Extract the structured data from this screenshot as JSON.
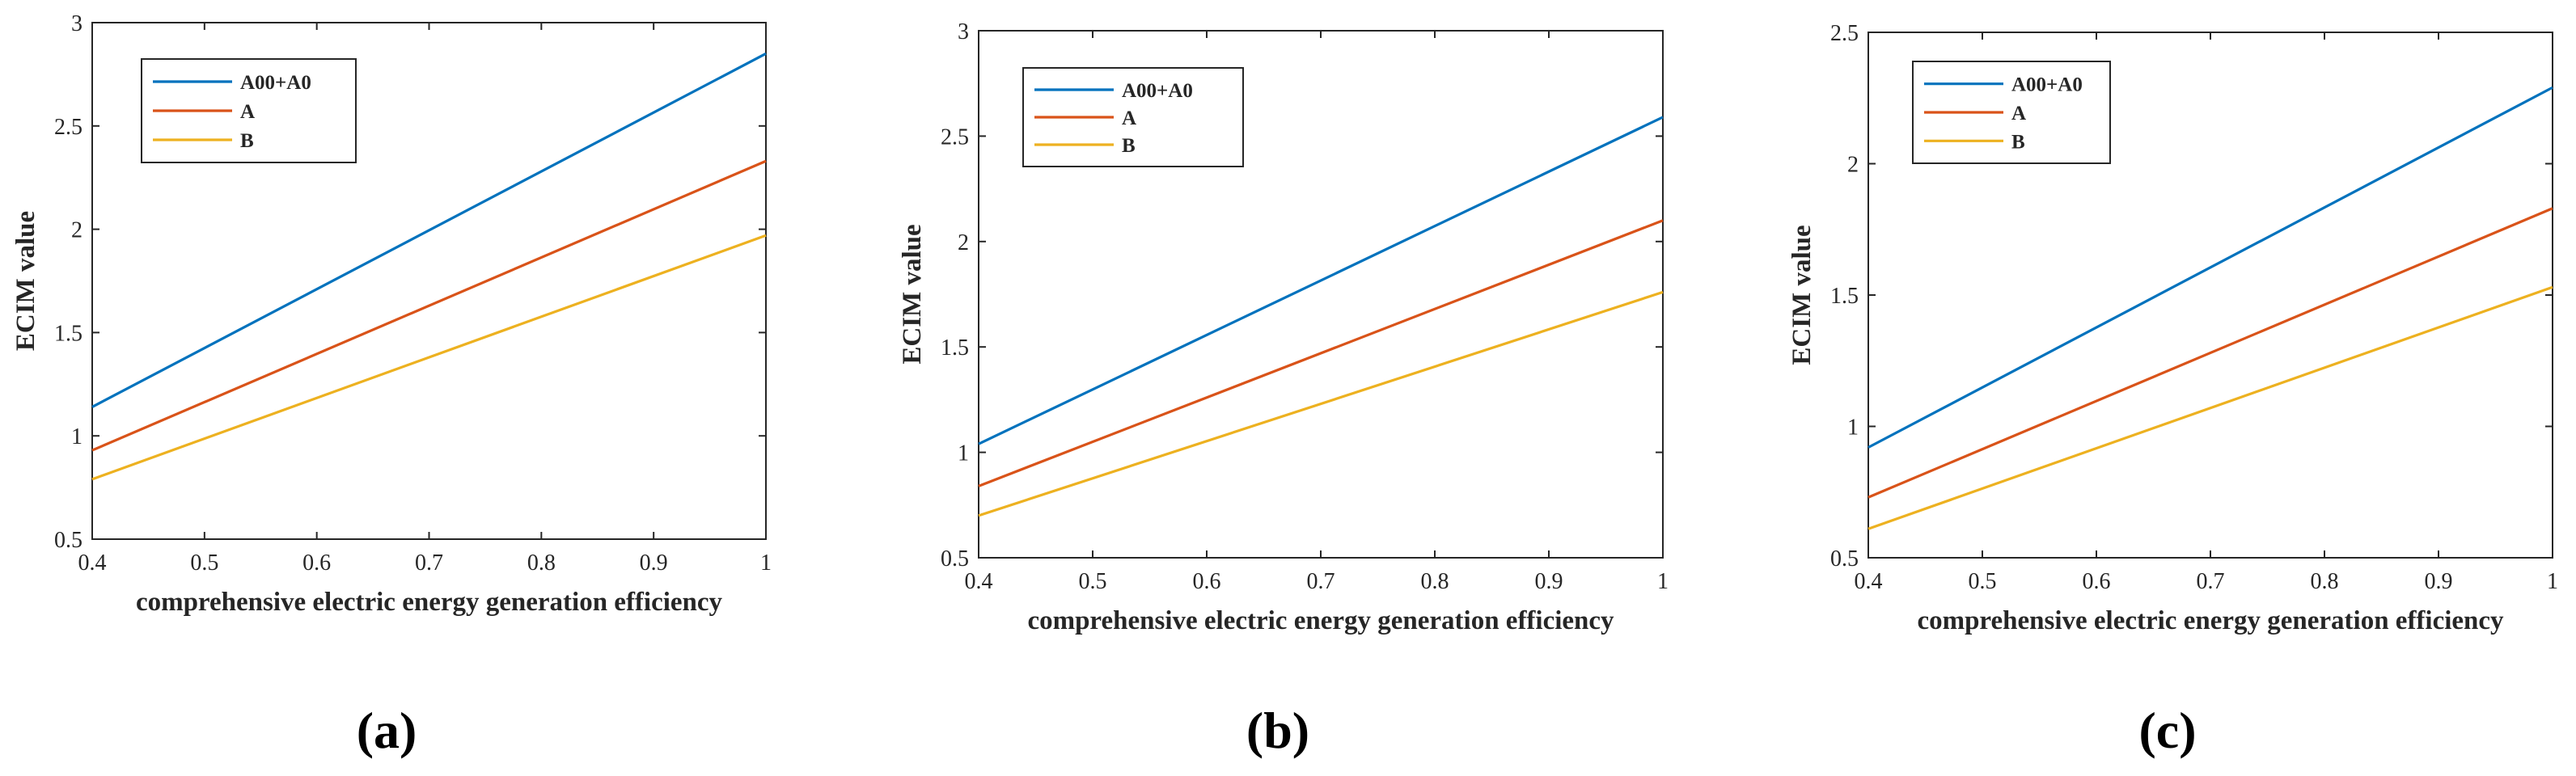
{
  "colors": {
    "series_1": "#0072BD",
    "series_2": "#D95319",
    "series_3": "#EDB120",
    "axis": "#262626"
  },
  "chart_data": [
    {
      "type": "line",
      "panel_label": "(a)",
      "xlabel": "comprehensive electric energy generation efficiency",
      "ylabel": "ECIM value",
      "xlim": [
        0.4,
        1
      ],
      "ylim": [
        0.5,
        3
      ],
      "xticks": [
        0.4,
        0.5,
        0.6,
        0.7,
        0.8,
        0.9,
        1
      ],
      "xtick_labels": [
        "0.4",
        "0.5",
        "0.6",
        "0.7",
        "0.8",
        "0.9",
        "1"
      ],
      "yticks": [
        0.5,
        1,
        1.5,
        2,
        2.5,
        3
      ],
      "ytick_labels": [
        "0.5",
        "1",
        "1.5",
        "2",
        "2.5",
        "3"
      ],
      "legend_position": "top-left",
      "series": [
        {
          "name": "A00+A0",
          "x": [
            0.4,
            1
          ],
          "y": [
            1.14,
            2.85
          ]
        },
        {
          "name": "A",
          "x": [
            0.4,
            1
          ],
          "y": [
            0.93,
            2.33
          ]
        },
        {
          "name": "B",
          "x": [
            0.4,
            1
          ],
          "y": [
            0.79,
            1.97
          ]
        }
      ]
    },
    {
      "type": "line",
      "panel_label": "(b)",
      "xlabel": "comprehensive electric energy generation efficiency",
      "ylabel": "ECIM value",
      "xlim": [
        0.4,
        1
      ],
      "ylim": [
        0.5,
        3
      ],
      "xticks": [
        0.4,
        0.5,
        0.6,
        0.7,
        0.8,
        0.9,
        1
      ],
      "xtick_labels": [
        "0.4",
        "0.5",
        "0.6",
        "0.7",
        "0.8",
        "0.9",
        "1"
      ],
      "yticks": [
        0.5,
        1,
        1.5,
        2,
        2.5,
        3
      ],
      "ytick_labels": [
        "0.5",
        "1",
        "1.5",
        "2",
        "2.5",
        "3"
      ],
      "legend_position": "top-left",
      "series": [
        {
          "name": "A00+A0",
          "x": [
            0.4,
            1
          ],
          "y": [
            1.04,
            2.59
          ]
        },
        {
          "name": "A",
          "x": [
            0.4,
            1
          ],
          "y": [
            0.84,
            2.1
          ]
        },
        {
          "name": "B",
          "x": [
            0.4,
            1
          ],
          "y": [
            0.7,
            1.76
          ]
        }
      ]
    },
    {
      "type": "line",
      "panel_label": "(c)",
      "xlabel": "comprehensive electric energy generation efficiency",
      "ylabel": "ECIM value",
      "xlim": [
        0.4,
        1
      ],
      "ylim": [
        0.5,
        2.5
      ],
      "xticks": [
        0.4,
        0.5,
        0.6,
        0.7,
        0.8,
        0.9,
        1
      ],
      "xtick_labels": [
        "0.4",
        "0.5",
        "0.6",
        "0.7",
        "0.8",
        "0.9",
        "1"
      ],
      "yticks": [
        0.5,
        1,
        1.5,
        2,
        2.5
      ],
      "ytick_labels": [
        "0.5",
        "1",
        "1.5",
        "2",
        "2.5"
      ],
      "legend_position": "top-left",
      "series": [
        {
          "name": "A00+A0",
          "x": [
            0.4,
            1
          ],
          "y": [
            0.92,
            2.29
          ]
        },
        {
          "name": "A",
          "x": [
            0.4,
            1
          ],
          "y": [
            0.73,
            1.83
          ]
        },
        {
          "name": "B",
          "x": [
            0.4,
            1
          ],
          "y": [
            0.61,
            1.53
          ]
        }
      ]
    }
  ]
}
